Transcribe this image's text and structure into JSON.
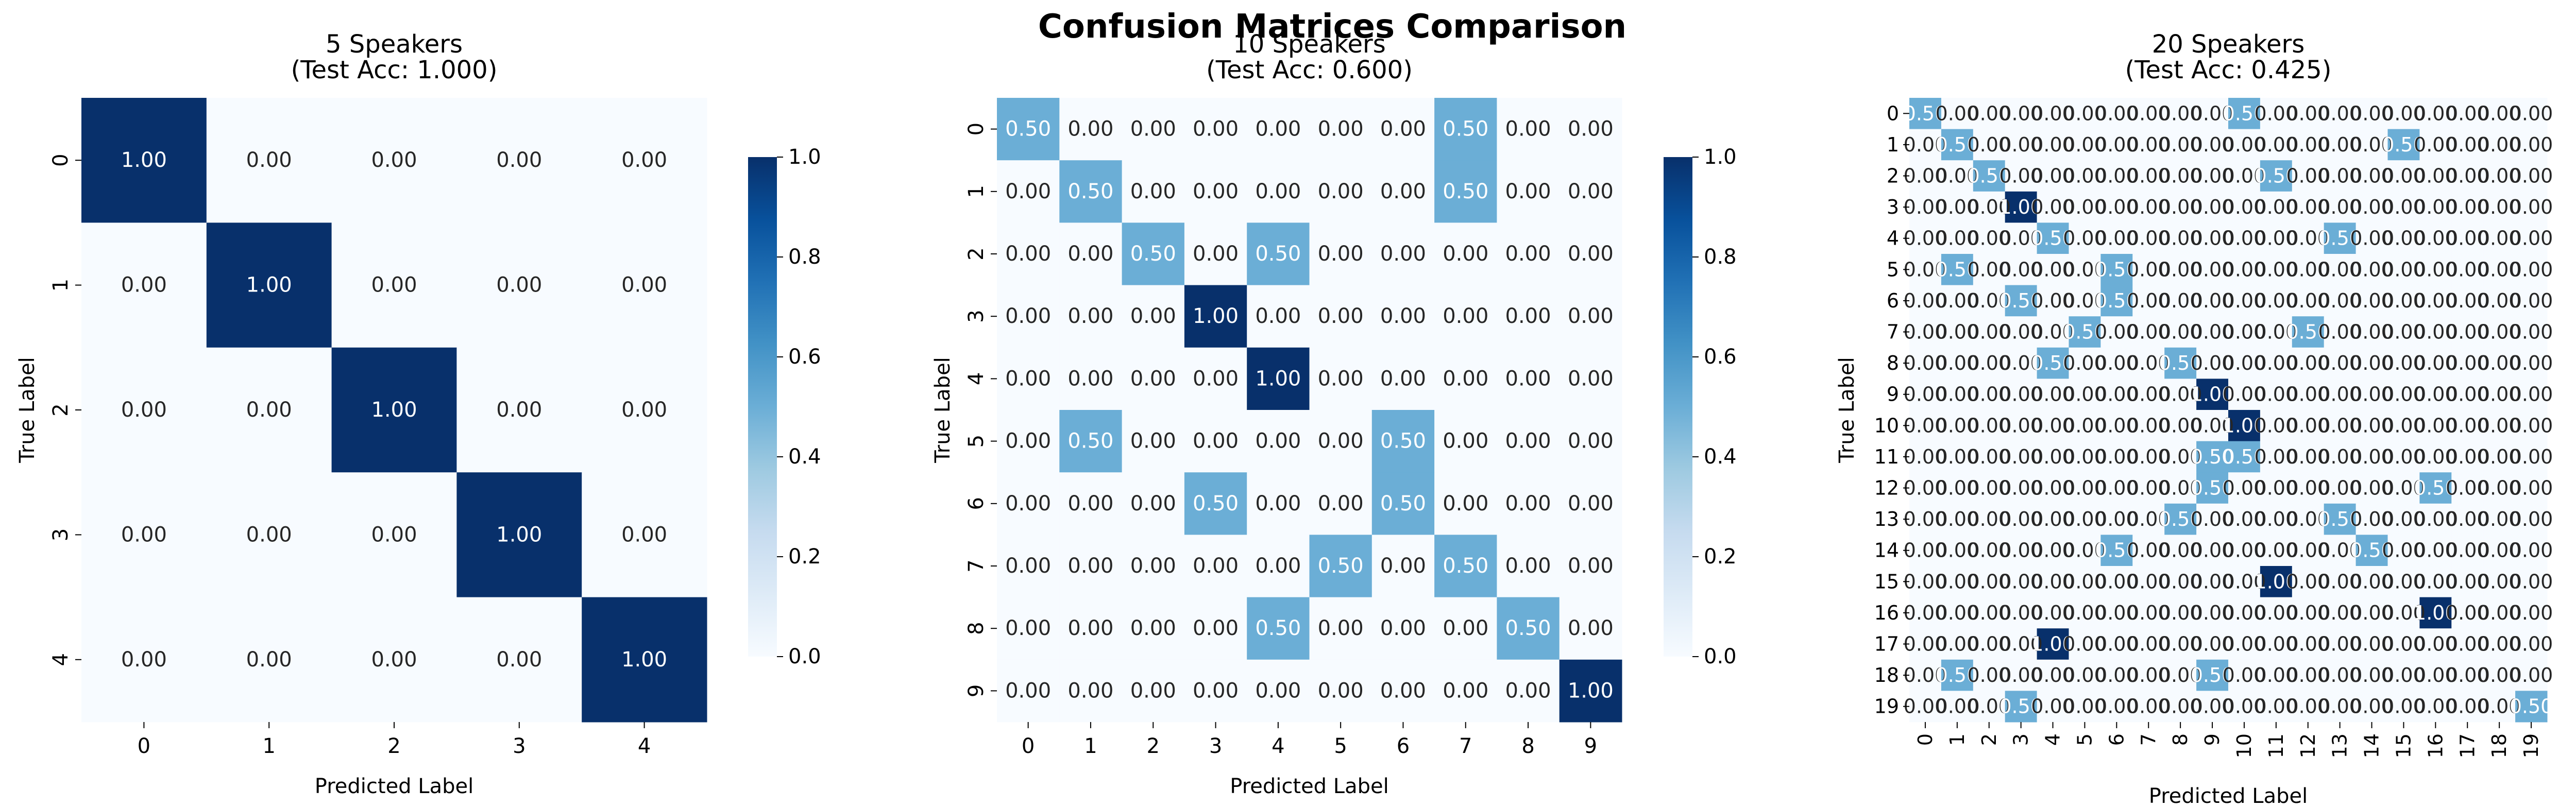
{
  "figure_title": "Confusion Matrices Comparison",
  "colorbar": {
    "ticks": [
      "0.0",
      "0.2",
      "0.4",
      "0.6",
      "0.8",
      "1.0"
    ],
    "colors": {
      "low": "#f7fbff",
      "mid": "#6baed6",
      "high": "#08306b"
    }
  },
  "chart_data": [
    {
      "type": "heatmap",
      "title": "5 Speakers\n(Test Acc: 1.000)",
      "xlabel": "Predicted Label",
      "ylabel": "True Label",
      "labels": [
        "0",
        "1",
        "2",
        "3",
        "4"
      ],
      "vmin": 0.0,
      "vmax": 1.0,
      "cmap": "Blues",
      "annotated": true,
      "fmt": "2 decimals",
      "values": [
        [
          0,
          0
        ],
        [
          1,
          1
        ],
        [
          2,
          2
        ],
        [
          3,
          3
        ],
        [
          4,
          4
        ]
      ],
      "values_note": "",
      "matrix_pairs": [
        [
          0,
          0,
          1.0
        ],
        [
          1,
          1,
          1.0
        ],
        [
          2,
          2,
          1.0
        ],
        [
          3,
          3,
          1.0
        ],
        [
          4,
          4,
          1.0
        ]
      ]
    },
    {
      "type": "heatmap",
      "title": "10 Speakers\n(Test Acc: 0.600)",
      "xlabel": "Predicted Label",
      "ylabel": "True Label",
      "labels": [
        "0",
        "1",
        "2",
        "3",
        "4",
        "5",
        "6",
        "7",
        "8",
        "9"
      ],
      "vmin": 0.0,
      "vmax": 1.0,
      "cmap": "Blues",
      "annotated": true,
      "matrix_pairs": [
        [
          0,
          0,
          0.5
        ],
        [
          0,
          7,
          0.5
        ],
        [
          1,
          1,
          0.5
        ],
        [
          1,
          7,
          0.5
        ],
        [
          2,
          2,
          0.5
        ],
        [
          2,
          4,
          0.5
        ],
        [
          3,
          3,
          1.0
        ],
        [
          4,
          4,
          1.0
        ],
        [
          5,
          1,
          0.5
        ],
        [
          5,
          6,
          0.5
        ],
        [
          6,
          3,
          0.5
        ],
        [
          6,
          6,
          0.5
        ],
        [
          7,
          5,
          0.5
        ],
        [
          7,
          7,
          0.5
        ],
        [
          8,
          4,
          0.5
        ],
        [
          8,
          8,
          0.5
        ],
        [
          9,
          9,
          1.0
        ]
      ]
    },
    {
      "type": "heatmap",
      "title": "20 Speakers\n(Test Acc: 0.425)",
      "xlabel": "Predicted Label",
      "ylabel": "True Label",
      "labels": [
        "0",
        "1",
        "2",
        "3",
        "4",
        "5",
        "6",
        "7",
        "8",
        "9",
        "10",
        "11",
        "12",
        "13",
        "14",
        "15",
        "16",
        "17",
        "18",
        "19"
      ],
      "vmin": 0.0,
      "vmax": 1.0,
      "cmap": "Blues",
      "annotated": true,
      "matrix_pairs": [
        [
          0,
          0,
          0.5
        ],
        [
          0,
          10,
          0.5
        ],
        [
          1,
          1,
          0.5
        ],
        [
          1,
          15,
          0.5
        ],
        [
          2,
          2,
          0.5
        ],
        [
          2,
          11,
          0.5
        ],
        [
          3,
          3,
          1.0
        ],
        [
          4,
          4,
          0.5
        ],
        [
          4,
          13,
          0.5
        ],
        [
          5,
          1,
          0.5
        ],
        [
          5,
          6,
          0.5
        ],
        [
          6,
          3,
          0.5
        ],
        [
          6,
          6,
          0.5
        ],
        [
          7,
          5,
          0.5
        ],
        [
          7,
          12,
          0.5
        ],
        [
          8,
          4,
          0.5
        ],
        [
          8,
          8,
          0.5
        ],
        [
          9,
          9,
          1.0
        ],
        [
          10,
          10,
          1.0
        ],
        [
          11,
          9,
          0.5
        ],
        [
          11,
          10,
          0.5
        ],
        [
          12,
          9,
          0.5
        ],
        [
          12,
          16,
          0.5
        ],
        [
          13,
          8,
          0.5
        ],
        [
          13,
          13,
          0.5
        ],
        [
          14,
          6,
          0.5
        ],
        [
          14,
          14,
          0.5
        ],
        [
          15,
          11,
          1.0
        ],
        [
          16,
          16,
          1.0
        ],
        [
          17,
          4,
          1.0
        ],
        [
          18,
          1,
          0.5
        ],
        [
          18,
          9,
          0.5
        ],
        [
          19,
          3,
          0.5
        ],
        [
          19,
          19,
          0.5
        ]
      ]
    }
  ]
}
